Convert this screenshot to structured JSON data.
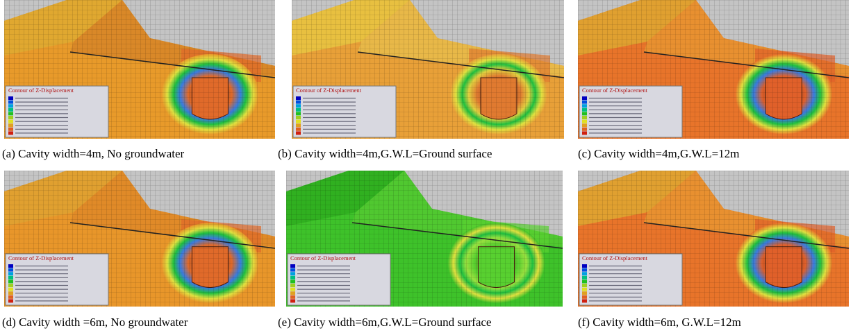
{
  "panels": [
    {
      "caption": "(a) Cavity width=4m, No groundwater",
      "legend_title": "Contour of Z-Displacement"
    },
    {
      "caption": "(b) Cavity width=4m,G.W.L=Ground surface",
      "legend_title": "Contour of Z-Displacement"
    },
    {
      "caption": "(c) Cavity width=4m,G.W.L=12m",
      "legend_title": "Contour of Z-Displacement"
    },
    {
      "caption": "(d) Cavity width =6m, No groundwater",
      "legend_title": "Contour of Z-Displacement"
    },
    {
      "caption": "(e) Cavity width=6m,G.W.L=Ground surface",
      "legend_title": "Contour of Z-Displacement"
    },
    {
      "caption": "(f) Cavity width=6m, G.W.L=12m",
      "legend_title": "Contour of Z-Displacement"
    }
  ]
}
